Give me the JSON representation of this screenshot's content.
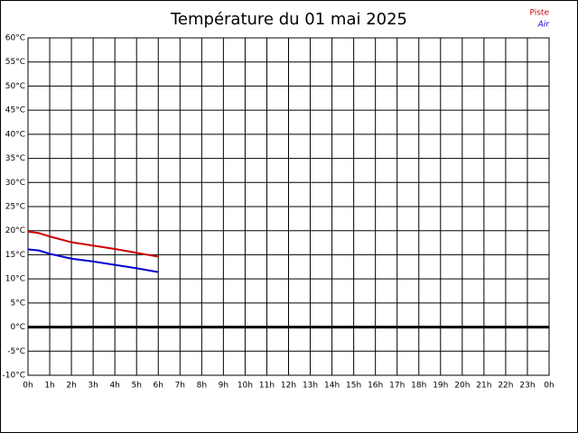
{
  "chart_data": {
    "type": "line",
    "title": "Température du 01 mai 2025",
    "x": [
      0,
      0.5,
      1,
      2,
      3,
      4,
      5,
      6
    ],
    "series": [
      {
        "name": "Piste",
        "color": "#cc0000",
        "values": [
          19.8,
          19.5,
          18.8,
          17.6,
          16.9,
          16.2,
          15.4,
          14.6
        ]
      },
      {
        "name": "Air",
        "color": "#0000cc",
        "values": [
          16.1,
          15.9,
          15.2,
          14.2,
          13.6,
          12.9,
          12.2,
          11.4
        ]
      }
    ],
    "xlim": [
      0,
      24
    ],
    "xticks": [
      {
        "value": 0,
        "label": "0h"
      },
      {
        "value": 1,
        "label": "1h"
      },
      {
        "value": 2,
        "label": "2h"
      },
      {
        "value": 3,
        "label": "3h"
      },
      {
        "value": 4,
        "label": "4h"
      },
      {
        "value": 5,
        "label": "5h"
      },
      {
        "value": 6,
        "label": "6h"
      },
      {
        "value": 7,
        "label": "7h"
      },
      {
        "value": 8,
        "label": "8h"
      },
      {
        "value": 9,
        "label": "9h"
      },
      {
        "value": 10,
        "label": "10h"
      },
      {
        "value": 11,
        "label": "11h"
      },
      {
        "value": 12,
        "label": "12h"
      },
      {
        "value": 13,
        "label": "13h"
      },
      {
        "value": 14,
        "label": "14h"
      },
      {
        "value": 15,
        "label": "15h"
      },
      {
        "value": 16,
        "label": "16h"
      },
      {
        "value": 17,
        "label": "17h"
      },
      {
        "value": 18,
        "label": "18h"
      },
      {
        "value": 19,
        "label": "19h"
      },
      {
        "value": 20,
        "label": "20h"
      },
      {
        "value": 21,
        "label": "21h"
      },
      {
        "value": 22,
        "label": "22h"
      },
      {
        "value": 23,
        "label": "23h"
      },
      {
        "value": 24,
        "label": "0h"
      }
    ],
    "ylim": [
      -10,
      60
    ],
    "yticks": [
      {
        "value": -10,
        "label": "-10°C"
      },
      {
        "value": -5,
        "label": "-5°C"
      },
      {
        "value": 0,
        "label": "0°C"
      },
      {
        "value": 5,
        "label": "5°C"
      },
      {
        "value": 10,
        "label": "10°C"
      },
      {
        "value": 15,
        "label": "15°C"
      },
      {
        "value": 20,
        "label": "20°C"
      },
      {
        "value": 25,
        "label": "25°C"
      },
      {
        "value": 30,
        "label": "30°C"
      },
      {
        "value": 35,
        "label": "35°C"
      },
      {
        "value": 40,
        "label": "40°C"
      },
      {
        "value": 45,
        "label": "45°C"
      },
      {
        "value": 50,
        "label": "50°C"
      },
      {
        "value": 55,
        "label": "55°C"
      },
      {
        "value": 60,
        "label": "60°C"
      }
    ],
    "grid": true
  }
}
